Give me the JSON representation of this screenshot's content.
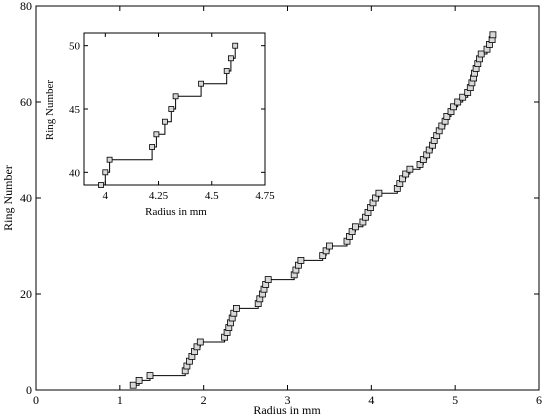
{
  "chart_data": [
    {
      "type": "line",
      "title": "",
      "xlabel": "Radius in mm",
      "ylabel": "Ring Number",
      "xlim": [
        0,
        6
      ],
      "ylim": [
        0,
        80
      ],
      "x_ticks": [
        0,
        1,
        2,
        3,
        4,
        5,
        6
      ],
      "y_ticks": [
        0,
        20,
        40,
        60,
        80
      ],
      "x_tick_labels": [
        "0",
        "1",
        "2",
        "3",
        "4",
        "5",
        "6"
      ],
      "y_tick_labels": [
        "0",
        "20",
        "40",
        "60",
        "80"
      ],
      "grid": false,
      "line_style": "step",
      "marker": "square",
      "series": [
        {
          "points": [
            [
              1.16,
              1
            ],
            [
              1.23,
              2
            ],
            [
              1.36,
              3
            ],
            [
              1.78,
              4
            ],
            [
              1.8,
              5
            ],
            [
              1.83,
              6
            ],
            [
              1.86,
              7
            ],
            [
              1.89,
              8
            ],
            [
              1.92,
              9
            ],
            [
              1.96,
              10
            ],
            [
              2.25,
              11
            ],
            [
              2.28,
              12
            ],
            [
              2.3,
              13
            ],
            [
              2.32,
              14
            ],
            [
              2.34,
              15
            ],
            [
              2.36,
              16
            ],
            [
              2.39,
              17
            ],
            [
              2.65,
              18
            ],
            [
              2.67,
              19
            ],
            [
              2.7,
              20
            ],
            [
              2.72,
              21
            ],
            [
              2.74,
              22
            ],
            [
              2.77,
              23
            ],
            [
              3.08,
              24
            ],
            [
              3.1,
              25
            ],
            [
              3.13,
              26
            ],
            [
              3.16,
              27
            ],
            [
              3.42,
              28
            ],
            [
              3.46,
              29
            ],
            [
              3.5,
              30
            ],
            [
              3.71,
              31
            ],
            [
              3.74,
              32
            ],
            [
              3.77,
              33
            ],
            [
              3.81,
              34
            ],
            [
              3.9,
              35
            ],
            [
              3.93,
              36
            ],
            [
              3.96,
              37
            ],
            [
              3.99,
              38
            ],
            [
              4.02,
              39
            ],
            [
              4.05,
              40
            ],
            [
              4.09,
              41
            ],
            [
              4.31,
              42
            ],
            [
              4.34,
              43
            ],
            [
              4.37,
              44
            ],
            [
              4.41,
              45
            ],
            [
              4.46,
              46
            ],
            [
              4.58,
              47
            ],
            [
              4.62,
              48
            ],
            [
              4.66,
              49
            ],
            [
              4.69,
              50
            ],
            [
              4.73,
              51
            ],
            [
              4.75,
              52
            ],
            [
              4.78,
              53
            ],
            [
              4.81,
              54
            ],
            [
              4.84,
              55
            ],
            [
              4.88,
              56
            ],
            [
              4.9,
              57
            ],
            [
              4.95,
              58
            ],
            [
              4.98,
              59
            ],
            [
              5.03,
              60
            ],
            [
              5.09,
              61
            ],
            [
              5.15,
              62
            ],
            [
              5.18,
              63
            ],
            [
              5.2,
              64
            ],
            [
              5.22,
              65
            ],
            [
              5.23,
              66
            ],
            [
              5.25,
              67
            ],
            [
              5.27,
              68
            ],
            [
              5.29,
              69
            ],
            [
              5.31,
              70
            ],
            [
              5.38,
              71
            ],
            [
              5.41,
              72
            ],
            [
              5.44,
              73
            ],
            [
              5.45,
              74
            ]
          ]
        }
      ]
    },
    {
      "type": "line",
      "title": "",
      "xlabel": "Radius in mm",
      "ylabel": "Ring Number",
      "xlim": [
        3.9,
        4.75
      ],
      "ylim": [
        39,
        51
      ],
      "x_ticks": [
        4,
        4.25,
        4.5,
        4.75
      ],
      "y_ticks": [
        40,
        45,
        50
      ],
      "x_tick_labels": [
        "4",
        "4.25",
        "4.5",
        "4.75"
      ],
      "y_tick_labels": [
        "40",
        "45",
        "50"
      ],
      "grid": false,
      "line_style": "step",
      "marker": "square",
      "series": [
        {
          "points": [
            [
              3.98,
              39
            ],
            [
              4.0,
              40
            ],
            [
              4.02,
              41
            ],
            [
              4.22,
              42
            ],
            [
              4.24,
              43
            ],
            [
              4.28,
              44
            ],
            [
              4.31,
              45
            ],
            [
              4.33,
              46
            ],
            [
              4.45,
              47
            ],
            [
              4.57,
              48
            ],
            [
              4.59,
              49
            ],
            [
              4.61,
              50
            ]
          ]
        }
      ]
    }
  ]
}
